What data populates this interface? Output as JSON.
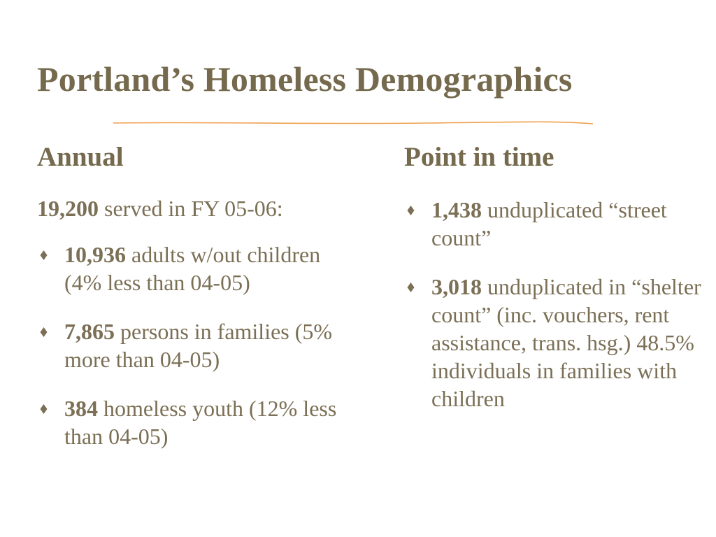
{
  "slide": {
    "title": "Portland’s Homeless Demographics"
  },
  "colors": {
    "title": "#756a4d",
    "body": "#7b6f55",
    "divider": "#f0a050"
  },
  "annual": {
    "heading": "Annual",
    "lead_number": "19,200",
    "lead_text": " served in FY 05-06:",
    "items": [
      {
        "number": "10,936",
        "text": " adults w/out children (4% less than 04-05)"
      },
      {
        "number": "7,865",
        "text": " persons in families (5% more than 04-05)"
      },
      {
        "number": "384",
        "text": " homeless youth (12% less than 04-05)"
      }
    ]
  },
  "point_in_time": {
    "heading": "Point in time",
    "items": [
      {
        "number": "1,438",
        "text": " unduplicated “street count”"
      },
      {
        "number": "3,018",
        "text": " unduplicated in “shelter count” (inc. vouchers, rent assistance, trans. hsg.) 48.5% individuals in families with children"
      }
    ]
  },
  "icons": {
    "bullet": "diamond-bullet-icon"
  }
}
